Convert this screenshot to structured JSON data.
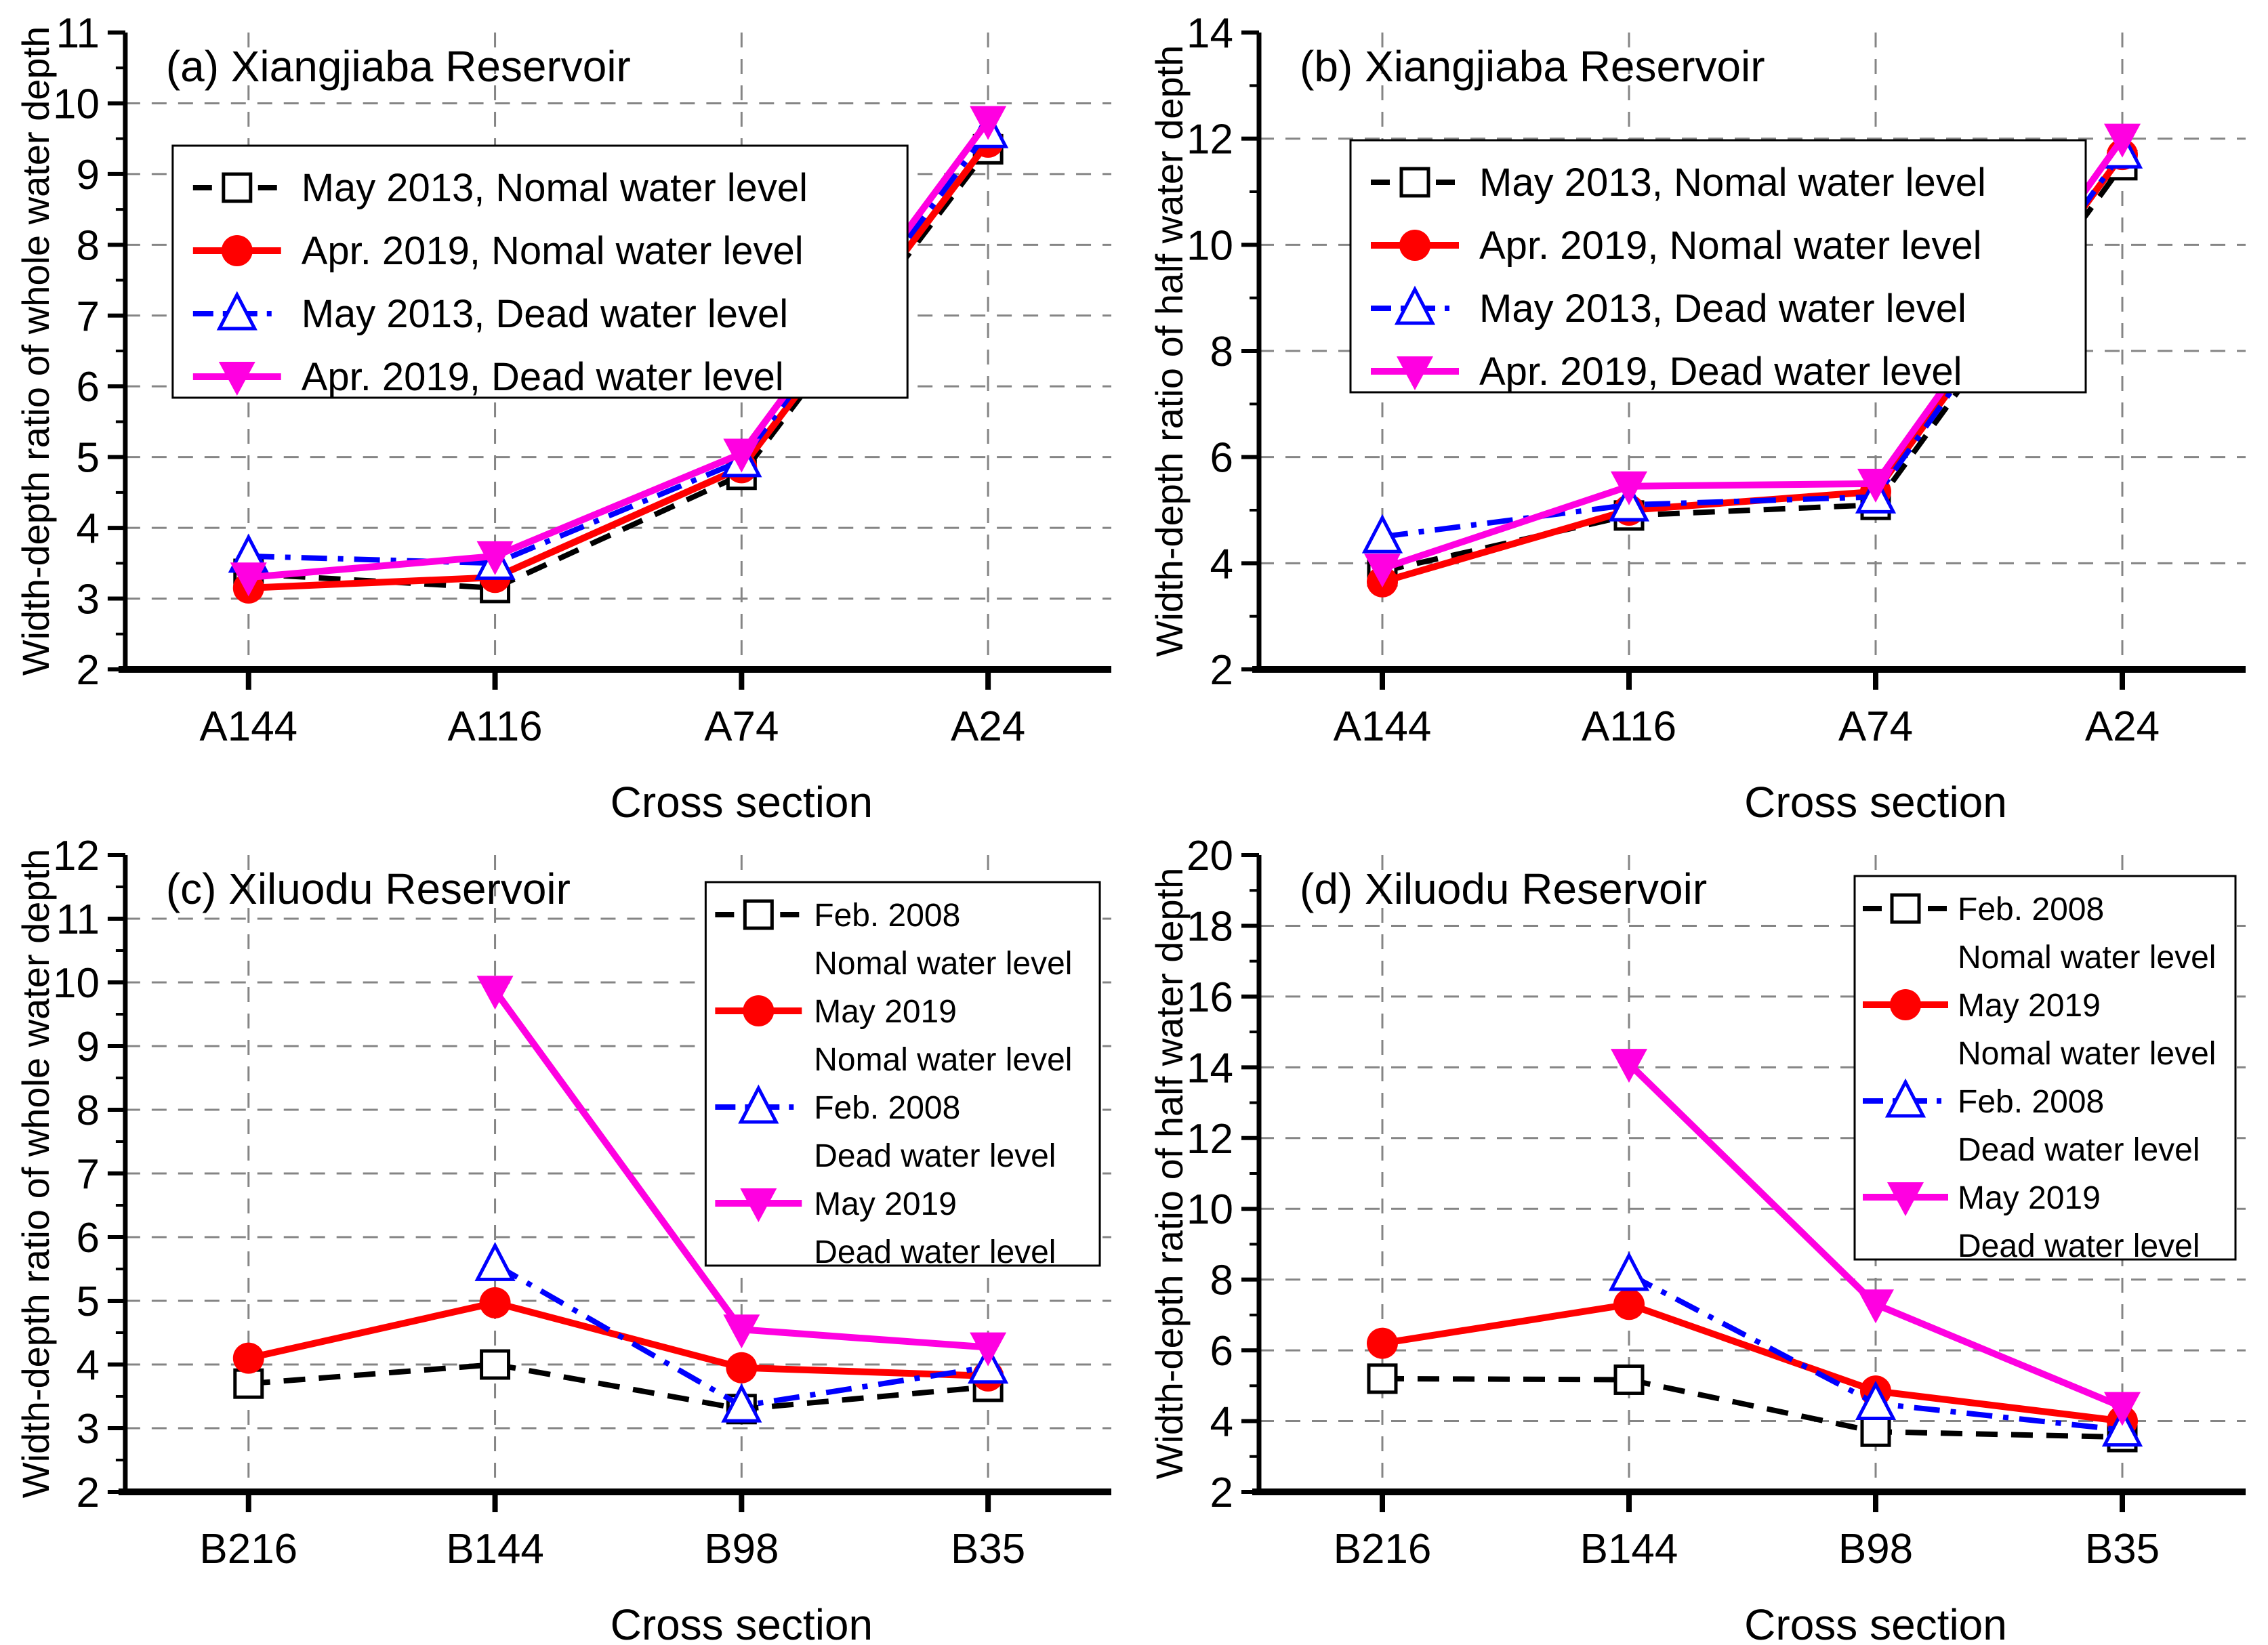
{
  "figure": {
    "background": "#ffffff",
    "grid_color": "#858585",
    "axis_color": "#000000"
  },
  "chart_data": [
    {
      "id": "a",
      "type": "line",
      "title": "(a) Xiangjiaba Reservoir",
      "xlabel": "Cross section",
      "ylabel": "Width-depth ratio of whole water depth",
      "categories": [
        "A144",
        "A116",
        "A74",
        "A24"
      ],
      "ylim": [
        2,
        11
      ],
      "ytick_step": 1,
      "yticks": [
        "2",
        "3",
        "4",
        "5",
        "6",
        "7",
        "8",
        "9",
        "10",
        "11"
      ],
      "minor_step": 0.5,
      "grid": true,
      "legend_position": "upper-left",
      "legend_two_line": false,
      "series": [
        {
          "name": "May 2013, Nomal water level",
          "color": "#000000",
          "line": "dash",
          "marker": "square-open",
          "values": [
            3.35,
            3.15,
            4.75,
            9.35
          ]
        },
        {
          "name": "Apr. 2019, Nomal water level",
          "color": "#FF0000",
          "line": "solid",
          "marker": "circle-filled",
          "values": [
            3.15,
            3.3,
            4.85,
            9.45
          ]
        },
        {
          "name": "May 2013, Dead water level",
          "color": "#0000FF",
          "line": "dashdot",
          "marker": "triangle-up-open",
          "values": [
            3.6,
            3.5,
            4.95,
            9.6
          ]
        },
        {
          "name": "Apr. 2019, Dead water level",
          "color": "#FF00E1",
          "line": "solid",
          "marker": "triangle-down-filled",
          "values": [
            3.3,
            3.6,
            5.05,
            9.75
          ]
        }
      ]
    },
    {
      "id": "b",
      "type": "line",
      "title": "(b) Xiangjiaba Reservoir",
      "xlabel": "Cross section",
      "ylabel": "Width-depth ratio of half water depth",
      "categories": [
        "A144",
        "A116",
        "A74",
        "A24"
      ],
      "ylim": [
        2,
        14
      ],
      "ytick_step": 2,
      "yticks": [
        "2",
        "4",
        "6",
        "8",
        "10",
        "12",
        "14"
      ],
      "minor_step": 1,
      "grid": true,
      "legend_position": "upper-left",
      "legend_two_line": false,
      "series": [
        {
          "name": "May 2013, Nomal water level",
          "color": "#000000",
          "line": "dash",
          "marker": "square-open",
          "values": [
            3.85,
            4.9,
            5.1,
            11.5
          ]
        },
        {
          "name": "Apr. 2019, Nomal water level",
          "color": "#FF0000",
          "line": "solid",
          "marker": "circle-filled",
          "values": [
            3.65,
            5.0,
            5.35,
            11.7
          ]
        },
        {
          "name": "May 2013, Dead water level",
          "color": "#0000FF",
          "line": "dashdot",
          "marker": "triangle-up-open",
          "values": [
            4.5,
            5.1,
            5.25,
            11.75
          ]
        },
        {
          "name": "Apr. 2019, Dead water level",
          "color": "#FF00E1",
          "line": "solid",
          "marker": "triangle-down-filled",
          "values": [
            3.9,
            5.45,
            5.5,
            12.0
          ]
        }
      ]
    },
    {
      "id": "c",
      "type": "line",
      "title": "(c) Xiluodu Reservoir",
      "xlabel": "Cross section",
      "ylabel": "Width-depth ratio of whole water depth",
      "categories": [
        "B216",
        "B144",
        "B98",
        "B35"
      ],
      "ylim": [
        2,
        12
      ],
      "ytick_step": 1,
      "yticks": [
        "2",
        "3",
        "4",
        "5",
        "6",
        "7",
        "8",
        "9",
        "10",
        "11",
        "12"
      ],
      "minor_step": 0.5,
      "grid": true,
      "legend_position": "upper-right",
      "legend_two_line": true,
      "series": [
        {
          "name": "Feb. 2008 Nomal water level",
          "label_lines": [
            "Feb. 2008",
            "Nomal water level"
          ],
          "color": "#000000",
          "line": "dash",
          "marker": "square-open",
          "values": [
            3.7,
            4.0,
            3.3,
            3.65
          ]
        },
        {
          "name": "May 2019 Nomal water level",
          "label_lines": [
            "May 2019",
            "Nomal water level"
          ],
          "color": "#FF0000",
          "line": "solid",
          "marker": "circle-filled",
          "values": [
            4.1,
            4.97,
            3.95,
            3.82
          ]
        },
        {
          "name": "Feb. 2008 Dead water level",
          "label_lines": [
            "Feb. 2008",
            "Dead water level"
          ],
          "color": "#0000FF",
          "line": "dashdot",
          "marker": "triangle-up-open",
          "values": [
            null,
            5.57,
            3.35,
            3.96
          ]
        },
        {
          "name": "May 2019 Dead water level",
          "label_lines": [
            "May 2019",
            "Dead water level"
          ],
          "color": "#FF00E1",
          "line": "solid",
          "marker": "triangle-down-filled",
          "values": [
            null,
            9.87,
            4.55,
            4.27
          ]
        }
      ]
    },
    {
      "id": "d",
      "type": "line",
      "title": "(d) Xiluodu Reservoir",
      "xlabel": "Cross section",
      "ylabel": "Width-depth ratio of half water depth",
      "categories": [
        "B216",
        "B144",
        "B98",
        "B35"
      ],
      "ylim": [
        2,
        20
      ],
      "ytick_step": 2,
      "yticks": [
        "2",
        "4",
        "6",
        "8",
        "10",
        "12",
        "14",
        "16",
        "18",
        "20"
      ],
      "minor_step": 1,
      "grid": true,
      "legend_position": "upper-right",
      "legend_two_line": true,
      "series": [
        {
          "name": "Feb. 2008 Nomal water level",
          "label_lines": [
            "Feb. 2008",
            "Nomal water level"
          ],
          "color": "#000000",
          "line": "dash",
          "marker": "square-open",
          "values": [
            5.2,
            5.17,
            3.7,
            3.55
          ]
        },
        {
          "name": "May 2019 Nomal water level",
          "label_lines": [
            "May 2019",
            "Nomal water level"
          ],
          "color": "#FF0000",
          "line": "solid",
          "marker": "circle-filled",
          "values": [
            6.2,
            7.3,
            4.85,
            4.0
          ]
        },
        {
          "name": "Feb. 2008 Dead water level",
          "label_lines": [
            "Feb. 2008",
            "Dead water level"
          ],
          "color": "#0000FF",
          "line": "dashdot",
          "marker": "triangle-up-open",
          "values": [
            null,
            8.15,
            4.5,
            3.75
          ]
        },
        {
          "name": "May 2019 Dead water level",
          "label_lines": [
            "May 2019",
            "Dead water level"
          ],
          "color": "#FF00E1",
          "line": "solid",
          "marker": "triangle-down-filled",
          "values": [
            null,
            14.1,
            7.3,
            4.4
          ]
        }
      ]
    }
  ]
}
